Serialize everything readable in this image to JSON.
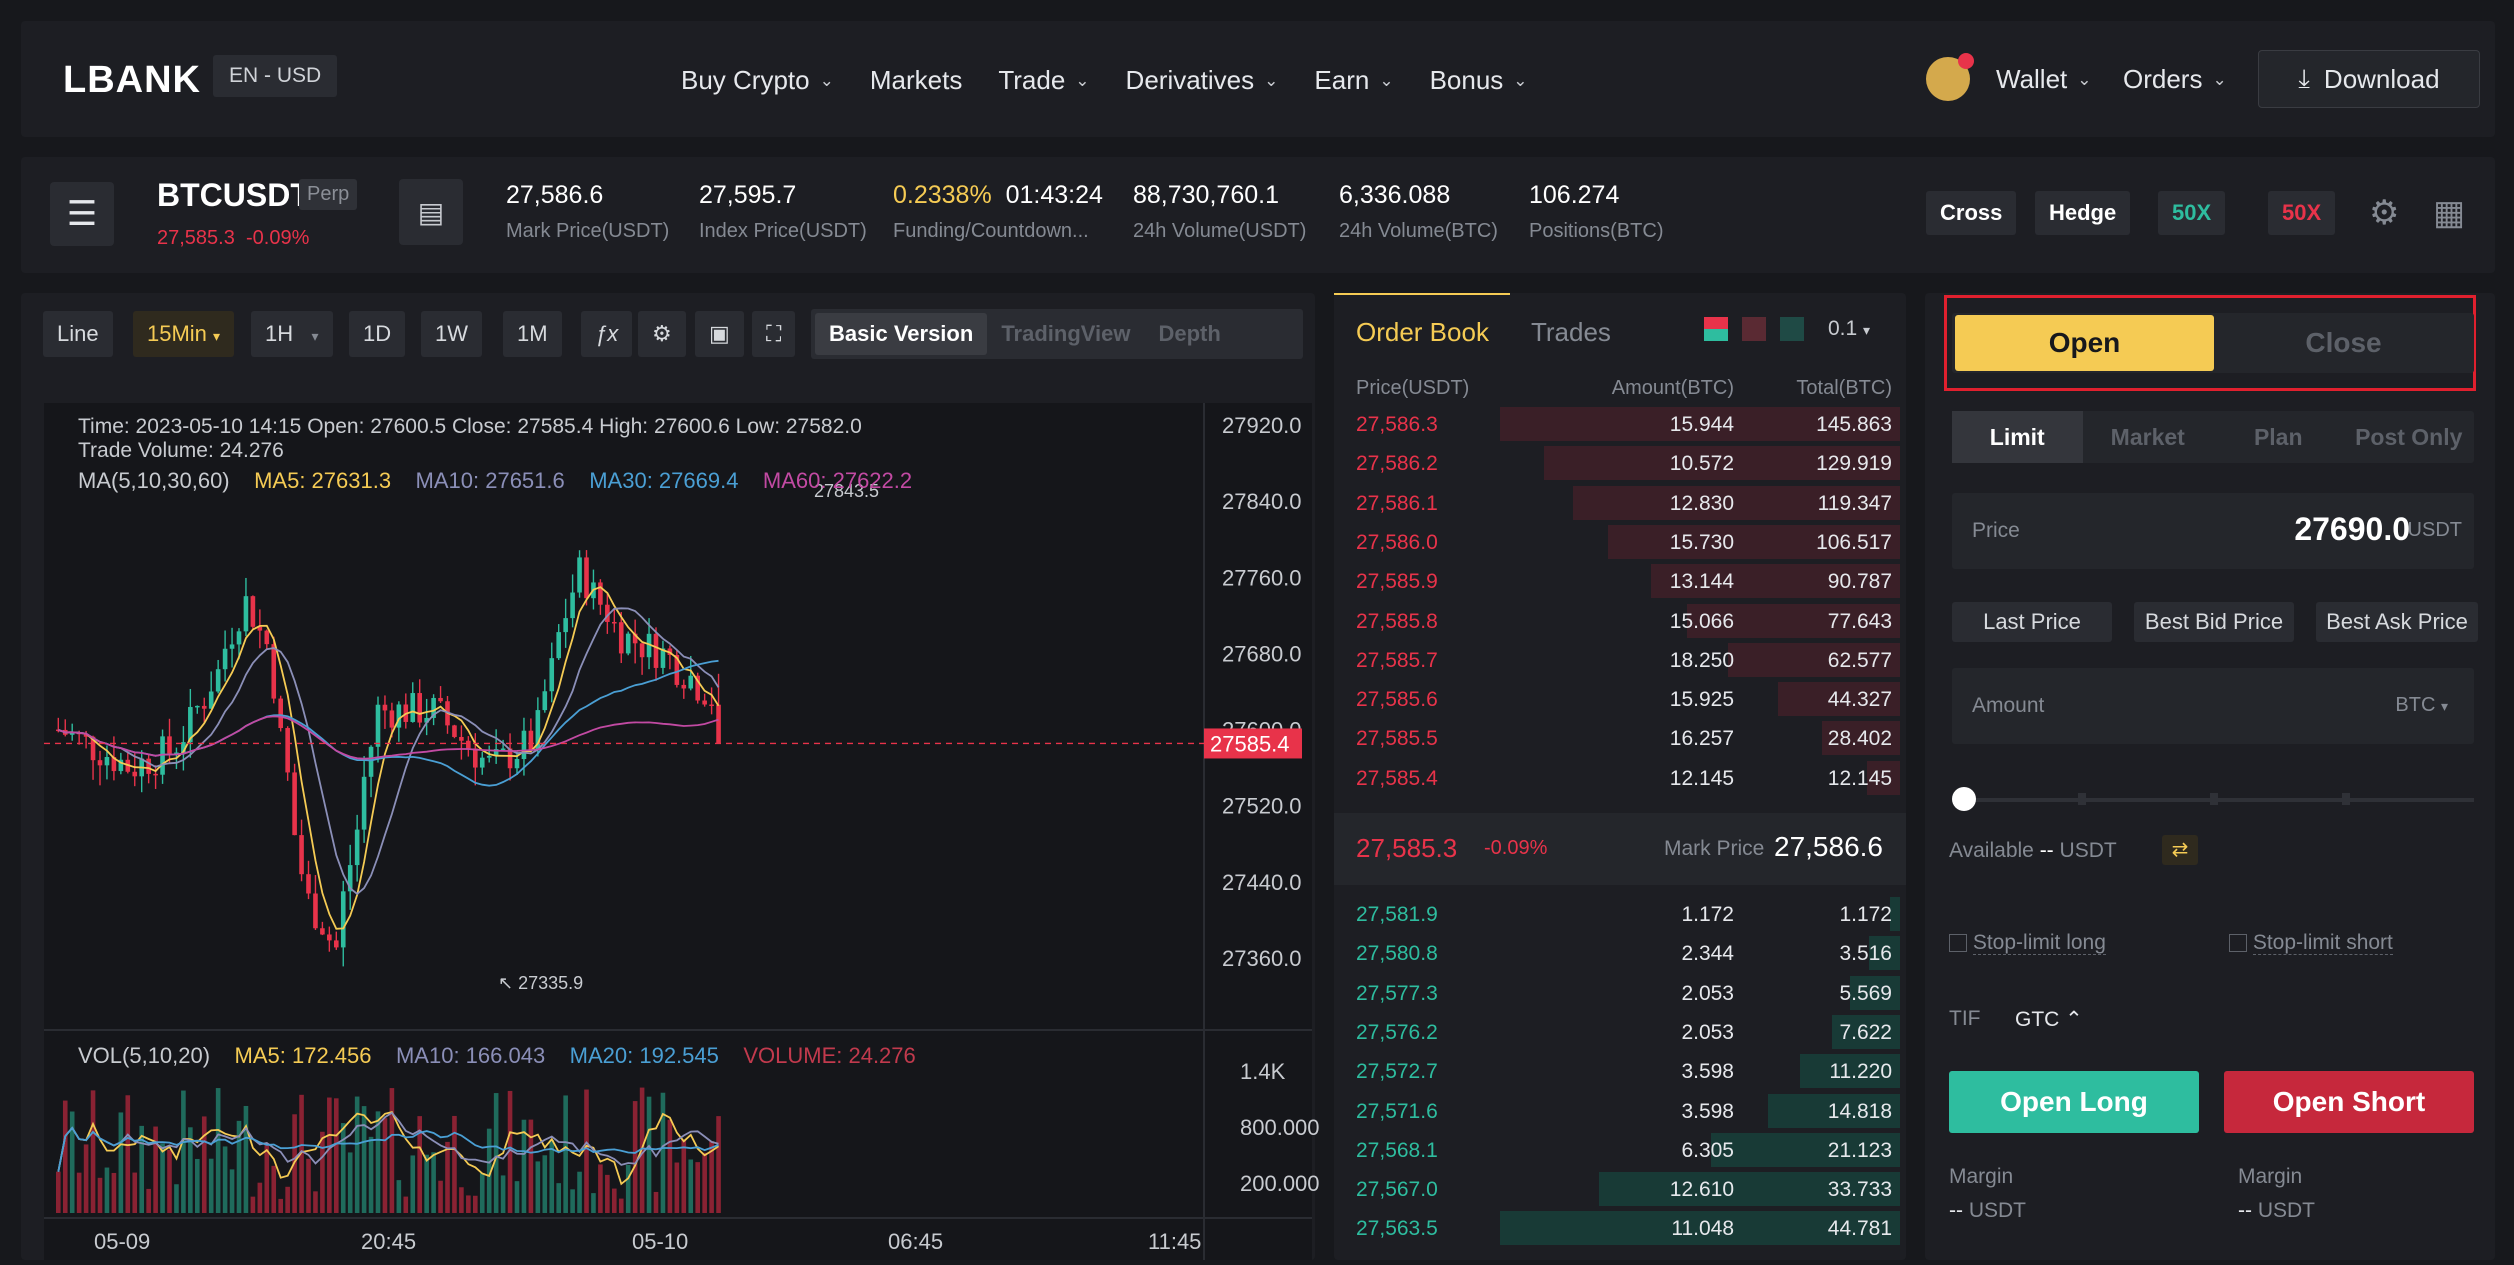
{
  "nav": {
    "logo": "LBANK",
    "lang": "EN - USD",
    "menu": [
      "Buy Crypto",
      "Markets",
      "Trade",
      "Derivatives",
      "Earn",
      "Bonus"
    ],
    "menu_dropdown": [
      true,
      false,
      true,
      true,
      true,
      true
    ],
    "wallet": "Wallet",
    "orders": "Orders",
    "download": "Download"
  },
  "ticker": {
    "symbol": "BTCUSDT",
    "perp": "Perp",
    "last_price": "27,585.3",
    "change": "-0.09%",
    "stats": [
      {
        "value": "27,586.6",
        "label": "Mark Price(USDT)"
      },
      {
        "value": "27,595.7",
        "label": "Index Price(USDT)"
      },
      {
        "value": "0.2338%",
        "value2": "01:43:24",
        "label": "Funding/Countdown..."
      },
      {
        "value": "88,730,760.1",
        "label": "24h Volume(USDT)"
      },
      {
        "value": "6,336.088",
        "label": "24h Volume(BTC)"
      },
      {
        "value": "106.274",
        "label": "Positions(BTC)"
      }
    ],
    "cross": "Cross",
    "hedge": "Hedge",
    "lev_long": "50X",
    "lev_short": "50X"
  },
  "chart_toolbar": {
    "type": "Line",
    "intervals": [
      "15Min",
      "1H",
      "1D",
      "1W",
      "1M"
    ],
    "versions": [
      "Basic Version",
      "TradingView",
      "Depth"
    ]
  },
  "chart": {
    "info_line1": "Time: 2023-05-10 14:15      Open: 27600.5      Close: 27585.4      High: 27600.6      Low: 27582.0",
    "info_line2": "Trade Volume: 24.276",
    "ma_label": "MA(5,10,30,60)",
    "ma5": "MA5: 27631.3",
    "ma10": "MA10: 27651.6",
    "ma30": "MA30: 27669.4",
    "ma60": "MA60: 27622.2",
    "high_mark": "27843.5",
    "low_mark": "↖ 27335.9",
    "price_ticks": [
      "27920.0",
      "27840.0",
      "27760.0",
      "27680.0",
      "27600.0",
      "27520.0",
      "27440.0",
      "27360.0"
    ],
    "current_price": "27585.4",
    "vol_label": "VOL(5,10,20)",
    "vma5": "MA5: 172.456",
    "vma10": "MA10: 166.043",
    "vma20": "MA20: 192.545",
    "volume": "VOLUME: 24.276",
    "vol_ticks": [
      "1.4K",
      "800.000",
      "200.000"
    ],
    "time_ticks": [
      "05-09",
      "20:45",
      "05-10",
      "06:45",
      "11:45"
    ],
    "colors": {
      "up": "#2ebd9f",
      "down": "#e8334a",
      "ma5": "#f5cb54",
      "ma10": "#8b8fb8",
      "ma30": "#4a9fd4",
      "ma60": "#c24aa3"
    }
  },
  "orderbook": {
    "tabs": [
      "Order Book",
      "Trades"
    ],
    "precision": "0.1",
    "headers": [
      "Price(USDT)",
      "Amount(BTC)",
      "Total(BTC)"
    ],
    "asks": [
      [
        "27,586.3",
        "15.944",
        "145.863"
      ],
      [
        "27,586.2",
        "10.572",
        "129.919"
      ],
      [
        "27,586.1",
        "12.830",
        "119.347"
      ],
      [
        "27,586.0",
        "15.730",
        "106.517"
      ],
      [
        "27,585.9",
        "13.144",
        "90.787"
      ],
      [
        "27,585.8",
        "15.066",
        "77.643"
      ],
      [
        "27,585.7",
        "18.250",
        "62.577"
      ],
      [
        "27,585.6",
        "15.925",
        "44.327"
      ],
      [
        "27,585.5",
        "16.257",
        "28.402"
      ],
      [
        "27,585.4",
        "12.145",
        "12.145"
      ]
    ],
    "mid_price": "27,585.3",
    "mid_change": "-0.09%",
    "mark_label": "Mark Price",
    "mark_price": "27,586.6",
    "bids": [
      [
        "27,581.9",
        "1.172",
        "1.172"
      ],
      [
        "27,580.8",
        "2.344",
        "3.516"
      ],
      [
        "27,577.3",
        "2.053",
        "5.569"
      ],
      [
        "27,576.2",
        "2.053",
        "7.622"
      ],
      [
        "27,572.7",
        "3.598",
        "11.220"
      ],
      [
        "27,571.6",
        "3.598",
        "14.818"
      ],
      [
        "27,568.1",
        "6.305",
        "21.123"
      ],
      [
        "27,567.0",
        "12.610",
        "33.733"
      ],
      [
        "27,563.5",
        "11.048",
        "44.781"
      ]
    ]
  },
  "order": {
    "open": "Open",
    "close": "Close",
    "tabs": [
      "Limit",
      "Market",
      "Plan",
      "Post Only"
    ],
    "price_label": "Price",
    "price_value": "27690.0",
    "price_unit": "USDT",
    "quick": [
      "Last Price",
      "Best Bid Price",
      "Best Ask Price"
    ],
    "amount_label": "Amount",
    "amount_unit": "BTC",
    "available_label": "Available",
    "available_value": "--",
    "available_unit": "USDT",
    "stop_long": "Stop-limit long",
    "stop_short": "Stop-limit short",
    "tif_label": "TIF",
    "tif_value": "GTC",
    "open_long": "Open Long",
    "open_short": "Open Short",
    "margin_label": "Margin",
    "margin_value": "--",
    "margin_unit": "USDT"
  }
}
